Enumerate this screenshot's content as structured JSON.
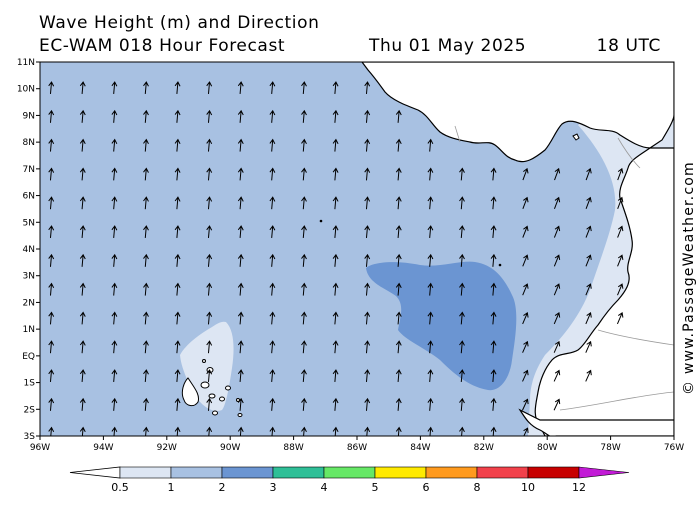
{
  "title": {
    "line1": "Wave Height (m) and Direction",
    "model": "EC-WAM 018 Hour Forecast",
    "date": "Thu 01 May 2025",
    "time": "18 UTC"
  },
  "credit": "© www.PassageWeather.com",
  "axes": {
    "lat_labels": [
      "11N",
      "10N",
      "9N",
      "8N",
      "7N",
      "6N",
      "5N",
      "4N",
      "3N",
      "2N",
      "1N",
      "EQ",
      "1S",
      "2S",
      "3S"
    ],
    "lon_labels": [
      "96W",
      "94W",
      "92W",
      "90W",
      "88W",
      "86W",
      "84W",
      "82W",
      "80W",
      "78W",
      "76W"
    ],
    "lat_range": [
      -3,
      11
    ],
    "lon_range": [
      -96,
      -76
    ]
  },
  "colors": {
    "land": "#ffffff",
    "coast": "#000000",
    "border": "#9a9a9a",
    "arrow": "#000000"
  },
  "legend": {
    "labels": [
      "0.5",
      "1",
      "2",
      "3",
      "4",
      "5",
      "6",
      "8",
      "10",
      "12"
    ],
    "colors": [
      "#dde6f3",
      "#a8c1e2",
      "#6b95d2",
      "#2fbf97",
      "#66e866",
      "#ffea00",
      "#ff9a1e",
      "#f2414b",
      "#c70000",
      "#c21ad6"
    ]
  }
}
